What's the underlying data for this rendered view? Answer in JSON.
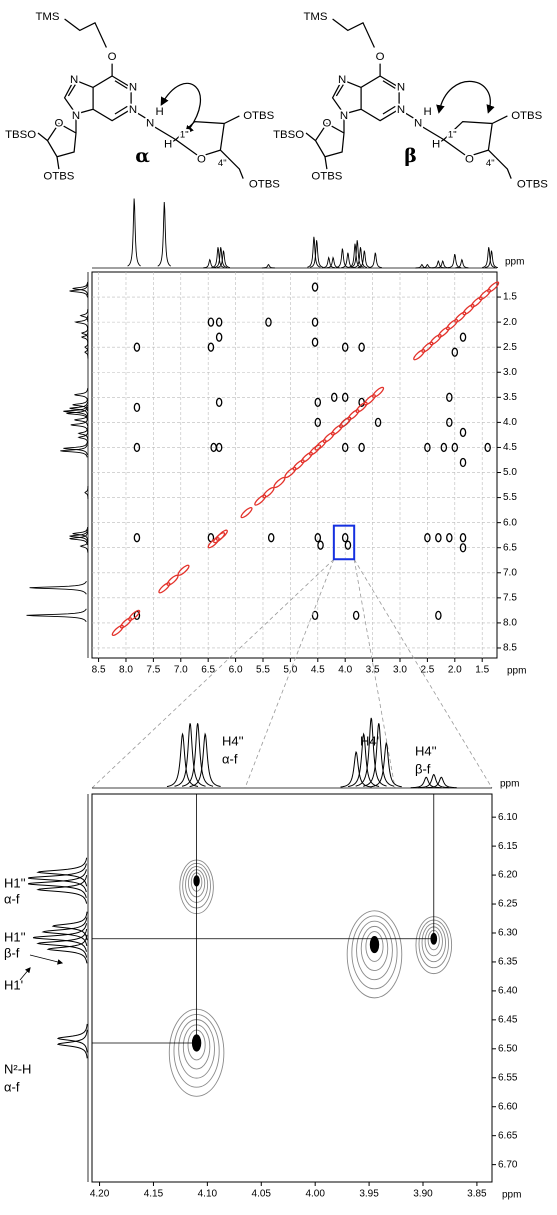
{
  "structures": [
    {
      "labels": [
        "TMS",
        "O",
        "N",
        "N",
        "N",
        "N",
        "TBSO",
        "O",
        "N",
        "H",
        "H",
        "1''",
        "O",
        "4''",
        "OTBS",
        "OTBS",
        "OTBS",
        "α"
      ]
    },
    {
      "labels": [
        "TMS",
        "O",
        "N",
        "N",
        "N",
        "N",
        "TBSO",
        "O",
        "N",
        "H",
        "H",
        "1''",
        "O",
        "4''",
        "OTBS",
        "OTBS",
        "OTBS",
        "β"
      ]
    }
  ],
  "chart_data": [
    {
      "type": "contour",
      "xlabel": "ppm",
      "ylabel": "ppm",
      "xlim": [
        8.62,
        1.23
      ],
      "ylim": [
        1.0,
        8.7
      ],
      "grid": true,
      "xticks": [
        8.5,
        {
          "value": 8,
          "label": "8.0"
        },
        7.5,
        {
          "value": 7,
          "label": "7.0"
        },
        6.5,
        {
          "value": 6,
          "label": "6.0"
        },
        5.5,
        {
          "value": 5,
          "label": "5.0"
        },
        4.5,
        {
          "value": 4,
          "label": "4.0"
        },
        3.5,
        {
          "value": 3,
          "label": "3.0"
        },
        2.5,
        {
          "value": 2,
          "label": "2.0"
        },
        1.5
      ],
      "yticks": [
        1.5,
        {
          "value": 2,
          "label": "2.0"
        },
        2.5,
        {
          "value": 3,
          "label": "3.0"
        },
        3.5,
        {
          "value": 4,
          "label": "4.0"
        },
        4.5,
        {
          "value": 5,
          "label": "5.0"
        },
        5.5,
        {
          "value": 6,
          "label": "6.0"
        },
        6.5,
        {
          "value": 7,
          "label": "7.0"
        },
        7.5,
        {
          "value": 8,
          "label": "8.0"
        },
        8.5
      ],
      "series": [
        {
          "color": "#000000",
          "x": [
            4.55,
            6.45,
            6.3,
            6.3,
            5.4,
            4.55,
            4.55,
            4.0,
            3.7,
            7.8,
            6.45,
            2.0,
            1.85,
            7.8,
            6.3,
            4.5,
            4.2,
            4.0,
            3.7,
            4.5,
            4.0,
            3.4,
            2.1,
            2.1,
            1.85,
            7.8,
            6.4,
            6.3,
            4.0,
            3.7,
            2.5,
            2.2,
            2.0,
            1.4,
            1.85,
            7.8,
            6.45,
            5.35,
            4.5,
            4.0,
            3.95,
            4.45,
            2.5,
            2.3,
            2.1,
            1.85,
            1.85,
            7.8,
            4.55,
            3.8,
            2.3
          ],
          "values": [
            1.3,
            2.0,
            2.0,
            2.3,
            2.0,
            2.0,
            2.4,
            2.5,
            2.5,
            2.5,
            2.5,
            2.6,
            2.3,
            3.7,
            3.6,
            3.6,
            3.5,
            3.5,
            3.6,
            4.0,
            4.0,
            4.0,
            3.5,
            4.0,
            4.2,
            4.5,
            4.5,
            4.5,
            4.5,
            4.5,
            4.5,
            4.5,
            4.5,
            4.5,
            4.8,
            6.3,
            6.3,
            6.3,
            6.3,
            6.3,
            6.45,
            6.45,
            6.3,
            6.3,
            6.3,
            6.3,
            6.5,
            7.85,
            7.85,
            7.85,
            7.85
          ]
        },
        {
          "color": "#e3322b",
          "x": [
            8.15,
            8.0,
            7.85,
            7.3,
            7.15,
            6.95,
            6.4,
            6.3,
            6.25,
            5.8,
            5.55,
            5.4,
            5.2,
            5.0,
            4.85,
            4.7,
            4.55,
            4.45,
            4.3,
            4.15,
            4.0,
            3.85,
            3.7,
            3.55,
            3.4,
            2.65,
            2.5,
            2.35,
            2.2,
            2.05,
            1.9,
            1.75,
            1.6,
            1.45,
            1.3
          ],
          "values": [
            8.15,
            8.0,
            7.85,
            7.3,
            7.15,
            6.95,
            6.4,
            6.3,
            6.25,
            5.8,
            5.55,
            5.4,
            5.2,
            5.0,
            4.85,
            4.7,
            4.55,
            4.45,
            4.3,
            4.15,
            4.0,
            3.85,
            3.7,
            3.55,
            3.4,
            2.65,
            2.5,
            2.35,
            2.2,
            2.05,
            1.9,
            1.75,
            1.6,
            1.45,
            1.3
          ]
        }
      ],
      "projection": {
        "x": [
          7.85,
          7.3,
          6.47,
          6.32,
          6.27,
          6.22,
          5.4,
          4.57,
          4.52,
          4.3,
          4.22,
          4.05,
          3.95,
          3.82,
          3.78,
          3.72,
          3.65,
          3.45,
          2.6,
          2.5,
          2.3,
          2.22,
          2.0,
          1.87,
          1.38,
          1.33
        ],
        "values": [
          1.0,
          0.95,
          0.12,
          0.3,
          0.3,
          0.25,
          0.05,
          0.45,
          0.4,
          0.15,
          0.15,
          0.28,
          0.22,
          0.35,
          0.4,
          0.3,
          0.25,
          0.22,
          0.05,
          0.05,
          0.1,
          0.1,
          0.2,
          0.12,
          0.3,
          0.25
        ]
      }
    },
    {
      "type": "contour",
      "xlabel": "ppm",
      "ylabel": "ppm",
      "xlim": [
        4.207,
        3.836
      ],
      "ylim": [
        6.06,
        6.73
      ],
      "grid": false,
      "xticks": [
        {
          "value": 4.2,
          "label": "4.20"
        },
        4.15,
        {
          "value": 4.1,
          "label": "4.10"
        },
        4.05,
        {
          "value": 4,
          "label": "4.00"
        },
        3.95,
        {
          "value": 3.9,
          "label": "3.90"
        },
        3.85
      ],
      "yticks": [
        {
          "value": 6.1,
          "label": "6.10"
        },
        6.15,
        {
          "value": 6.2,
          "label": "6.20"
        },
        6.25,
        {
          "value": 6.3,
          "label": "6.30"
        },
        6.35,
        {
          "value": 6.4,
          "label": "6.40"
        },
        6.45,
        {
          "value": 6.5,
          "label": "6.50"
        },
        6.55,
        {
          "value": 6.6,
          "label": "6.60"
        },
        6.65,
        {
          "value": 6.7,
          "label": "6.70"
        }
      ],
      "series": [
        {
          "color": "#8a8a8a",
          "core_color": "#000000",
          "x": [
            4.11,
            3.945,
            3.89,
            4.11
          ],
          "values": [
            6.21,
            6.32,
            6.31,
            6.49
          ]
        }
      ],
      "projection_x": {
        "x": [
          4.123,
          4.116,
          4.109,
          4.102,
          3.962,
          3.955,
          3.948,
          3.941,
          3.934,
          3.897,
          3.89,
          3.883
        ],
        "values": [
          0.6,
          0.72,
          0.72,
          0.6,
          0.4,
          0.6,
          0.78,
          0.72,
          0.5,
          0.12,
          0.15,
          0.12
        ]
      },
      "projection_y": {
        "x": [
          6.195,
          6.205,
          6.215,
          6.225,
          6.288,
          6.298,
          6.308,
          6.318,
          6.328,
          6.482,
          6.492
        ],
        "values": [
          0.5,
          0.6,
          0.6,
          0.5,
          0.35,
          0.45,
          0.55,
          0.5,
          0.4,
          0.3,
          0.3
        ]
      },
      "annotations": [
        "H4''",
        "α-f",
        "H4'",
        "H4''",
        "β-f",
        "H1''",
        "α-f",
        "H1''",
        "β-f",
        "H1'",
        "N²-H",
        "α-f"
      ]
    }
  ]
}
